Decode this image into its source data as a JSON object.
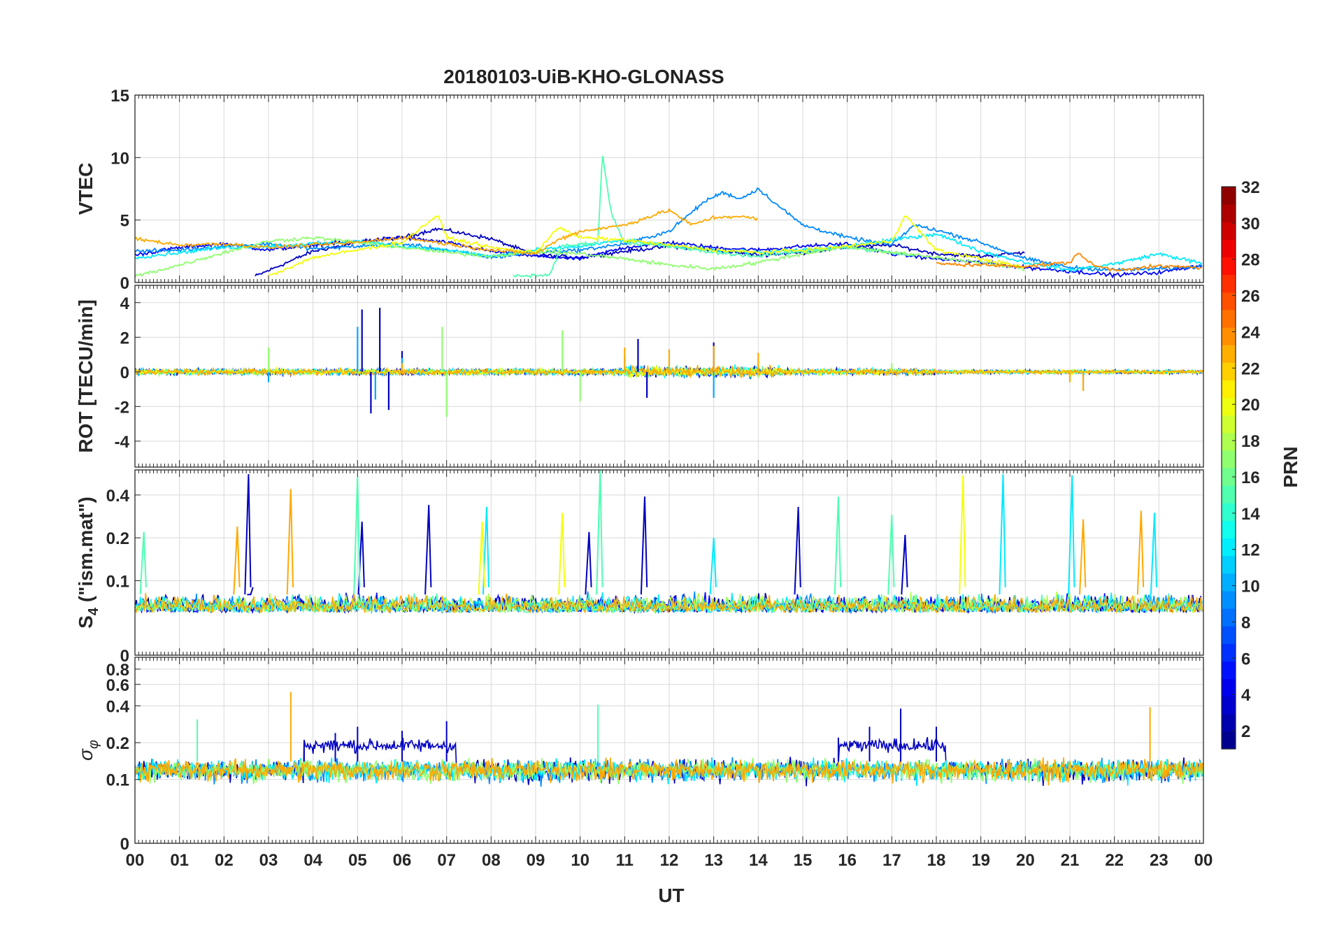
{
  "title": "20180103-UiB-KHO-GLONASS",
  "xlabel": "UT",
  "colorbar": {
    "label": "PRN",
    "range": [
      1,
      32
    ],
    "tick_labels": [
      "2",
      "4",
      "6",
      "8",
      "10",
      "12",
      "14",
      "16",
      "18",
      "20",
      "22",
      "24",
      "26",
      "28",
      "30",
      "32"
    ]
  },
  "chart_data": [
    {
      "type": "line",
      "panel": "VTEC",
      "ylabel": "VTEC",
      "x_unit": "hours UT",
      "xlim": [
        0,
        24
      ],
      "ylim": [
        0,
        15
      ],
      "yticks": [
        "0",
        "5",
        "10",
        "15"
      ],
      "grid": true,
      "series": [
        {
          "prn": 3,
          "x": [
            2.7,
            4,
            5,
            6,
            6.8,
            8,
            9,
            10,
            11,
            12,
            13,
            14,
            15,
            16,
            17,
            18,
            19,
            20
          ],
          "y": [
            0.5,
            2.5,
            3.2,
            3.6,
            4.3,
            3.5,
            2.2,
            2,
            2.5,
            2.9,
            2.6,
            2.2,
            2.4,
            2.8,
            3,
            2.3,
            2.1,
            2.4
          ]
        },
        {
          "prn": 5,
          "x": [
            0,
            1,
            2,
            3,
            4,
            5,
            6,
            7,
            8,
            9,
            10,
            11,
            12,
            13,
            14,
            15,
            16,
            17,
            18,
            19,
            20,
            21,
            22,
            23,
            24
          ],
          "y": [
            2.2,
            2.8,
            3.1,
            2.6,
            3,
            3.3,
            3.6,
            3.2,
            2.5,
            2.1,
            1.9,
            2.8,
            3.2,
            2.8,
            2.6,
            2.9,
            3.1,
            2.3,
            1.9,
            1.6,
            1.2,
            0.9,
            0.6,
            0.8,
            1.4
          ]
        },
        {
          "prn": 9,
          "x": [
            0,
            1,
            2,
            3,
            4,
            5,
            6,
            7,
            8,
            9,
            10,
            11,
            12,
            12.8,
            13.2,
            13.6,
            14,
            14.5,
            15,
            16,
            17,
            17.5,
            18,
            19,
            20,
            21,
            22,
            23,
            24
          ],
          "y": [
            2.5,
            2.6,
            2.9,
            3.1,
            2.7,
            2.9,
            3.1,
            2.6,
            2,
            2.4,
            2.6,
            3.1,
            4.1,
            6.5,
            7.2,
            6.7,
            7.5,
            6,
            4.6,
            3.6,
            3,
            4.6,
            4.2,
            3.2,
            1.9,
            1.2,
            1,
            1.1,
            1.3
          ]
        },
        {
          "prn": 12,
          "x": [
            0,
            1,
            2,
            3,
            4,
            5,
            6,
            7,
            8,
            9,
            10,
            11,
            12,
            13,
            14,
            15,
            16,
            17,
            18,
            19,
            20,
            21,
            22,
            23,
            24
          ],
          "y": [
            2,
            2.4,
            2.8,
            2.9,
            3.1,
            3.3,
            2.9,
            2.6,
            2.1,
            2.6,
            2.9,
            3.4,
            2.9,
            2.6,
            2.4,
            2.6,
            2.9,
            3.4,
            3.9,
            2.5,
            1.6,
            1,
            1.5,
            2.3,
            1.5
          ]
        },
        {
          "prn": 15,
          "x": [
            8.5,
            9.3,
            9.6,
            10.4,
            10.5,
            10.7,
            11,
            12,
            13,
            14,
            15,
            16,
            17,
            17.5
          ],
          "y": [
            0.5,
            0.6,
            2.9,
            3.2,
            10.3,
            5.5,
            3.2,
            2.9,
            2.4,
            2.1,
            2.5,
            2.8,
            2.4,
            2.1
          ]
        },
        {
          "prn": 17,
          "x": [
            0,
            1,
            2,
            3,
            4,
            5,
            6,
            7,
            8,
            9,
            10,
            11,
            12,
            13,
            14,
            15,
            16,
            17,
            18,
            19,
            20
          ],
          "y": [
            0.5,
            1.4,
            2.4,
            3.3,
            3.6,
            3.2,
            2.8,
            2.4,
            2.1,
            2.5,
            2.3,
            1.9,
            1.4,
            1.1,
            1.6,
            2.3,
            2.9,
            2.4,
            2,
            1.6,
            1.1
          ]
        },
        {
          "prn": 20,
          "x": [
            3,
            4,
            5,
            6,
            6.8,
            7,
            8,
            9,
            9.5,
            10,
            11,
            12,
            13,
            14,
            15,
            16,
            17,
            17.3,
            18,
            19,
            20
          ],
          "y": [
            0.5,
            2,
            2.6,
            3.2,
            5.4,
            3.6,
            2.8,
            2.4,
            4.4,
            3.6,
            3.4,
            3,
            2.6,
            2.4,
            2.6,
            2.9,
            3.3,
            5.4,
            2.6,
            1.9,
            1.2
          ]
        },
        {
          "prn": 23,
          "x": [
            0,
            1,
            2,
            3,
            4,
            5,
            6,
            7,
            8,
            9,
            9.5,
            10,
            11,
            12,
            12.5,
            13,
            13.5,
            14
          ],
          "y": [
            3.5,
            3,
            3.1,
            2.8,
            3,
            3.2,
            3.6,
            3.1,
            2.6,
            2.3,
            3.4,
            4.1,
            4.6,
            5.8,
            4.6,
            5.2,
            5.3,
            5.1
          ]
        },
        {
          "prn": 24,
          "x": [
            18,
            19,
            20,
            21,
            21.2,
            21.5,
            22,
            23,
            24
          ],
          "y": [
            1.5,
            1.4,
            1.3,
            1.6,
            2.4,
            1.4,
            1,
            1.3,
            1.2
          ]
        }
      ]
    },
    {
      "type": "line",
      "panel": "ROT",
      "ylabel": "ROT [TECU/min]",
      "x_unit": "hours UT",
      "xlim": [
        0,
        24
      ],
      "ylim": [
        -5.5,
        5
      ],
      "yticks": [
        "-4",
        "-2",
        "0",
        "2",
        "4"
      ],
      "grid": true,
      "baseline": 0,
      "series": [
        {
          "prn": 3,
          "x": [
            0,
            2,
            4,
            5.1,
            5.3,
            5.5,
            5.7,
            6,
            7,
            11.3,
            11.5,
            13,
            24
          ],
          "y": [
            0,
            0.3,
            0.4,
            3.6,
            -2.4,
            3.7,
            -2.2,
            1.2,
            0.4,
            1.9,
            -1.5,
            1.7,
            0.1
          ]
        },
        {
          "prn": 10,
          "x": [
            0,
            3,
            5,
            5.4,
            6,
            9,
            11,
            13,
            24
          ],
          "y": [
            0,
            -0.6,
            2.6,
            -1.6,
            0.8,
            0.4,
            0.9,
            -1.5,
            0.1
          ]
        },
        {
          "prn": 17,
          "x": [
            0,
            3,
            6.9,
            7,
            9.6,
            10,
            17,
            24
          ],
          "y": [
            0,
            1.4,
            2.6,
            -2.6,
            2.4,
            -1.7,
            0.5,
            0.1
          ]
        },
        {
          "prn": 23,
          "x": [
            0,
            6,
            9,
            11,
            12,
            13,
            14,
            21,
            21.3,
            22,
            24
          ],
          "y": [
            0,
            0.5,
            0.4,
            1.4,
            1.3,
            1.5,
            1.1,
            -0.6,
            -1.1,
            0.2,
            0.1
          ]
        }
      ]
    },
    {
      "type": "line",
      "panel": "S4",
      "ylabel": "S_4 (\"ism.mat\")",
      "ylabel_main": "S",
      "ylabel_sub": "4",
      "ylabel_rest": " (\"ism.mat\")",
      "x_unit": "hours UT",
      "xlim": [
        0,
        24
      ],
      "ylim": [
        0,
        0.6
      ],
      "scale": "log",
      "yticks": [
        "0",
        "0.1",
        "0.2",
        "0.4"
      ],
      "grid": true,
      "series": [
        {
          "prn": 3,
          "x": [
            2.55,
            2.6,
            5.1,
            6.6,
            10.2,
            11.45,
            14.9,
            17.3
          ],
          "y": [
            0.56,
            0.08,
            0.26,
            0.34,
            0.22,
            0.39,
            0.33,
            0.21
          ]
        },
        {
          "prn": 12,
          "x": [
            7.9,
            13.0,
            19.5,
            21.05,
            22.9
          ],
          "y": [
            0.33,
            0.2,
            0.56,
            0.55,
            0.3
          ]
        },
        {
          "prn": 15,
          "x": [
            0.2,
            5.0,
            10.45,
            15.8,
            17.0
          ],
          "y": [
            0.22,
            0.54,
            0.6,
            0.39,
            0.29
          ]
        },
        {
          "prn": 20,
          "x": [
            7.8,
            9.6,
            18.6
          ],
          "y": [
            0.26,
            0.3,
            0.55
          ]
        },
        {
          "prn": 23,
          "x": [
            2.3,
            3.5,
            21.3,
            22.6
          ],
          "y": [
            0.24,
            0.44,
            0.27,
            0.31
          ]
        }
      ]
    },
    {
      "type": "line",
      "panel": "sigma_phi",
      "ylabel": "σ_φ",
      "ylabel_main": "σ",
      "ylabel_sub": "φ",
      "x_unit": "hours UT",
      "xlim": [
        0,
        24
      ],
      "ylim": [
        0,
        1
      ],
      "scale": "log",
      "yticks": [
        "0",
        "0.1",
        "0.2",
        "0.4",
        "0.6",
        "0.8"
      ],
      "grid": true,
      "series": [
        {
          "prn": 3,
          "x": [
            3.8,
            4.5,
            5,
            6,
            7,
            15.8,
            16.5,
            17.2,
            18
          ],
          "y": [
            0.2,
            0.24,
            0.27,
            0.25,
            0.3,
            0.22,
            0.27,
            0.38,
            0.27
          ]
        },
        {
          "prn": 15,
          "x": [
            1.4,
            10.4
          ],
          "y": [
            0.31,
            0.41
          ]
        },
        {
          "prn": 23,
          "x": [
            3.5,
            22.8
          ],
          "y": [
            0.52,
            0.39
          ]
        }
      ]
    }
  ],
  "x_ticks": [
    "00",
    "01",
    "02",
    "03",
    "04",
    "05",
    "06",
    "07",
    "08",
    "09",
    "10",
    "11",
    "12",
    "13",
    "14",
    "15",
    "16",
    "17",
    "18",
    "19",
    "20",
    "21",
    "22",
    "23",
    "00"
  ]
}
